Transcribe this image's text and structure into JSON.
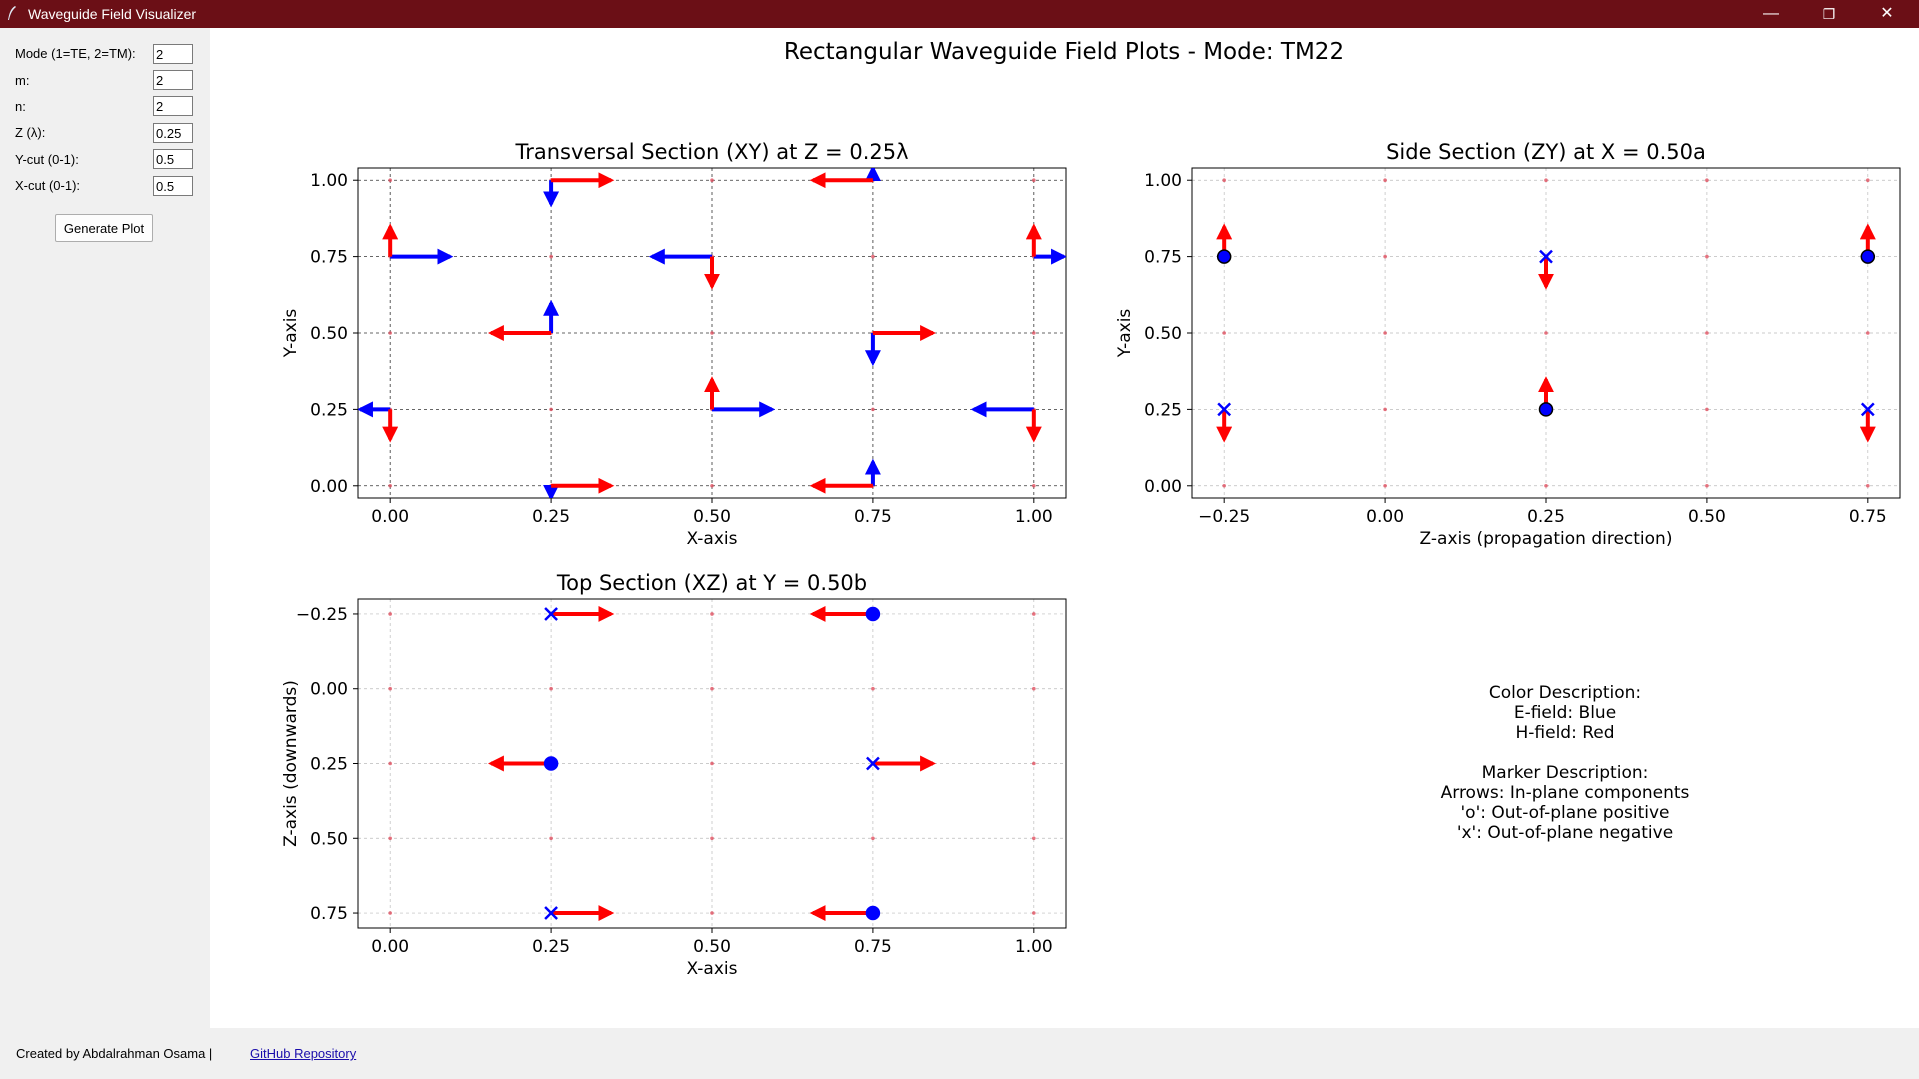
{
  "window": {
    "title": "Waveguide Field Visualizer",
    "controls": {
      "minimize": "—",
      "restore": "❐",
      "close": "✕"
    }
  },
  "sidebar": {
    "fields": [
      {
        "label": "Mode (1=TE, 2=TM):",
        "value": "2"
      },
      {
        "label": "m:",
        "value": "2"
      },
      {
        "label": "n:",
        "value": "2"
      },
      {
        "label": "Z (λ):",
        "value": "0.25"
      },
      {
        "label": "Y-cut (0-1):",
        "value": "0.5"
      },
      {
        "label": "X-cut (0-1):",
        "value": "0.5"
      }
    ],
    "generate_label": "Generate Plot"
  },
  "figure": {
    "suptitle": "Rectangular Waveguide Field Plots - Mode: TM22",
    "description": {
      "lines": [
        "Color Description:",
        "E-field: Blue",
        "H-field: Red",
        "",
        "Marker Description:",
        "Arrows: In-plane components",
        "'o': Out-of-plane positive",
        "'x': Out-of-plane negative"
      ]
    }
  },
  "colors": {
    "e_field": "#0000ff",
    "h_field": "#ff0000",
    "titlebar": "#6b0f16"
  },
  "chart_data": [
    {
      "type": "scatter",
      "title": "Transversal Section (XY) at Z = 0.25λ",
      "xlabel": "X-axis",
      "ylabel": "Y-axis",
      "xlim": [
        -0.05,
        1.05
      ],
      "ylim": [
        -0.04,
        1.04
      ],
      "xticks": [
        "0.00",
        "0.25",
        "0.50",
        "0.75",
        "1.00"
      ],
      "yticks": [
        "0.00",
        "0.25",
        "0.50",
        "0.75",
        "1.00"
      ],
      "grid": "dashed-dark",
      "grid_points": [
        0,
        0.25,
        0.5,
        0.75,
        1.0
      ],
      "series": [
        {
          "name": "E-field",
          "color": "#0000ff",
          "arrows": [
            [
              0.25,
              1.0,
              0,
              -0.08
            ],
            [
              0.75,
              1.0,
              0,
              0.04
            ],
            [
              0,
              0.75,
              0.2,
              0
            ],
            [
              0.5,
              0.75,
              -0.2,
              0
            ],
            [
              1.0,
              0.75,
              0.1,
              0
            ],
            [
              0.25,
              0.5,
              0,
              0.1
            ],
            [
              0.75,
              0.5,
              0,
              -0.1
            ],
            [
              0,
              0.25,
              -0.1,
              0
            ],
            [
              0.5,
              0.25,
              0.2,
              0
            ],
            [
              1.0,
              0.25,
              -0.2,
              0
            ],
            [
              0.25,
              0,
              0,
              -0.04
            ],
            [
              0.75,
              0,
              0,
              0.08
            ]
          ]
        },
        {
          "name": "H-field",
          "color": "#ff0000",
          "arrows": [
            [
              0.25,
              1.0,
              0.2,
              0
            ],
            [
              0.75,
              1.0,
              -0.2,
              0
            ],
            [
              0,
              0.75,
              0,
              0.1
            ],
            [
              0.5,
              0.75,
              0,
              -0.1
            ],
            [
              1.0,
              0.75,
              0,
              0.1
            ],
            [
              0.25,
              0.5,
              -0.2,
              0
            ],
            [
              0.75,
              0.5,
              0.2,
              0
            ],
            [
              0,
              0.25,
              0,
              -0.1
            ],
            [
              0.5,
              0.25,
              0,
              0.1
            ],
            [
              1.0,
              0.25,
              0,
              -0.1
            ],
            [
              0.25,
              0,
              0.2,
              0
            ],
            [
              0.75,
              0,
              -0.2,
              0
            ]
          ]
        }
      ]
    },
    {
      "type": "scatter",
      "title": "Side Section (ZY) at X = 0.50a",
      "xlabel": "Z-axis (propagation direction)",
      "ylabel": "Y-axis",
      "xlim": [
        -0.3,
        0.8
      ],
      "ylim": [
        -0.04,
        1.04
      ],
      "xticks": [
        "−0.25",
        "0.00",
        "0.25",
        "0.50",
        "0.75"
      ],
      "yticks": [
        "0.00",
        "0.25",
        "0.50",
        "0.75",
        "1.00"
      ],
      "grid": "dashed-light",
      "grid_x": [
        -0.25,
        0,
        0.25,
        0.5,
        0.75
      ],
      "grid_y": [
        0,
        0.25,
        0.5,
        0.75,
        1.0
      ],
      "series": [
        {
          "name": "H-field",
          "color": "#ff0000",
          "arrows": [
            [
              -0.25,
              0.75,
              0,
              0.1
            ],
            [
              0.25,
              0.75,
              0,
              -0.1
            ],
            [
              0.75,
              0.75,
              0,
              0.1
            ],
            [
              -0.25,
              0.25,
              0,
              -0.1
            ],
            [
              0.25,
              0.25,
              0,
              0.1
            ],
            [
              0.75,
              0.25,
              0,
              -0.1
            ]
          ]
        },
        {
          "name": "E-field",
          "color": "#0000ff",
          "markers": [
            [
              -0.25,
              0.75,
              "o"
            ],
            [
              0.25,
              0.75,
              "x"
            ],
            [
              0.75,
              0.75,
              "o"
            ],
            [
              -0.25,
              0.25,
              "x"
            ],
            [
              0.25,
              0.25,
              "o"
            ],
            [
              0.75,
              0.25,
              "x"
            ]
          ]
        }
      ]
    },
    {
      "type": "scatter",
      "title": "Top Section (XZ) at Y = 0.50b",
      "xlabel": "X-axis",
      "ylabel": "Z-axis (downwards)",
      "xlim": [
        -0.05,
        1.05
      ],
      "ylim": [
        0.8,
        -0.3
      ],
      "xticks": [
        "0.00",
        "0.25",
        "0.50",
        "0.75",
        "1.00"
      ],
      "yticks": [
        "−0.25",
        "0.00",
        "0.25",
        "0.50",
        "0.75"
      ],
      "grid": "dashed-light",
      "grid_x": [
        0,
        0.25,
        0.5,
        0.75,
        1.0
      ],
      "grid_y": [
        -0.25,
        0,
        0.25,
        0.5,
        0.75
      ],
      "series": [
        {
          "name": "H-field",
          "color": "#ff0000",
          "arrows": [
            [
              0.25,
              -0.25,
              0.2,
              0
            ],
            [
              0.75,
              -0.25,
              -0.2,
              0
            ],
            [
              0.25,
              0.25,
              -0.2,
              0
            ],
            [
              0.75,
              0.25,
              0.2,
              0
            ],
            [
              0.25,
              0.75,
              0.2,
              0
            ],
            [
              0.75,
              0.75,
              -0.2,
              0
            ]
          ]
        },
        {
          "name": "E-field",
          "color": "#0000ff",
          "markers": [
            [
              0.25,
              -0.25,
              "x"
            ],
            [
              0.75,
              -0.25,
              "o"
            ],
            [
              0.25,
              0.25,
              "o"
            ],
            [
              0.75,
              0.25,
              "x"
            ],
            [
              0.25,
              0.75,
              "x"
            ],
            [
              0.75,
              0.75,
              "o"
            ]
          ]
        }
      ]
    }
  ],
  "footer": {
    "credit": "Created by Abdalrahman Osama |",
    "link_text": "GitHub Repository"
  }
}
